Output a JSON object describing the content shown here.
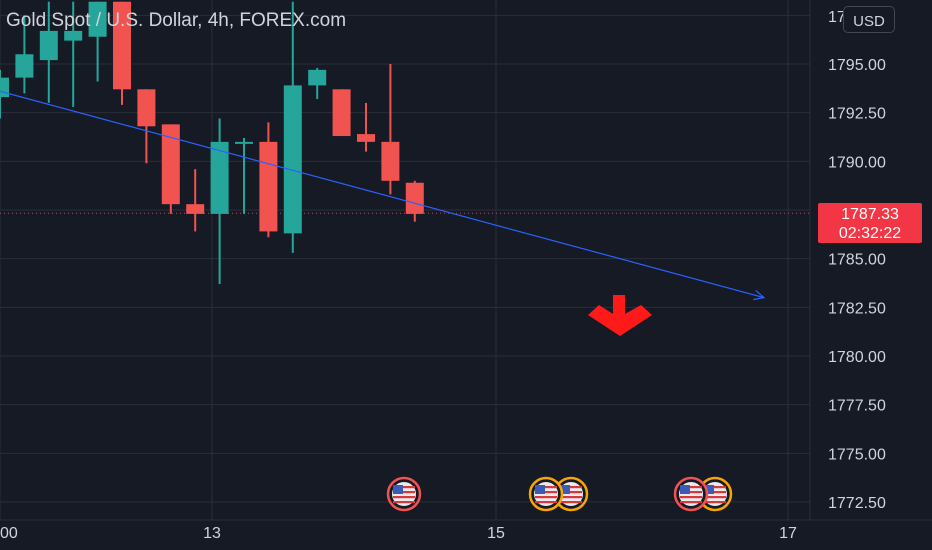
{
  "header": {
    "title": "Gold Spot / U.S. Dollar, 4h, FOREX.com"
  },
  "price_axis": {
    "currency_label": "USD",
    "top_partial_label": "1797.50",
    "ticks": [
      1795.0,
      1792.5,
      1790.0,
      1787.5,
      1785.0,
      1782.5,
      1780.0,
      1777.5,
      1775.0,
      1772.5
    ],
    "tick_labels": [
      "1795.00",
      "1792.50",
      "1790.00",
      "1787.50",
      "1785.00",
      "1782.50",
      "1780.00",
      "1777.50",
      "1775.00",
      "1772.50"
    ]
  },
  "last_price": {
    "price": "1787.33",
    "countdown": "02:32:22",
    "value": 1787.33
  },
  "time_axis": {
    "labels": [
      "00",
      "13",
      "15",
      "17"
    ]
  },
  "colors": {
    "up": "#26a69a",
    "down": "#f05350",
    "trend_line": "#2962ff",
    "arrow": "#ff1a1a",
    "background": "#161a25",
    "grid": "#2a2e39",
    "last_price_line": "#f23645"
  },
  "chart_data": {
    "type": "candlestick",
    "title": "Gold Spot / U.S. Dollar, 4h, FOREX.com",
    "ylabel": "",
    "xlabel": "",
    "ylim": [
      1771.8,
      1798.2
    ],
    "candles": [
      {
        "open": 1793.3,
        "high": 1794.7,
        "low": 1792.2,
        "close": 1794.3
      },
      {
        "open": 1794.3,
        "high": 1797.5,
        "low": 1793.5,
        "close": 1795.5
      },
      {
        "open": 1795.2,
        "high": 1798.2,
        "low": 1793.0,
        "close": 1796.7
      },
      {
        "open": 1796.2,
        "high": 1798.2,
        "low": 1792.8,
        "close": 1796.7
      },
      {
        "open": 1796.4,
        "high": 1798.2,
        "low": 1794.1,
        "close": 1798.2
      },
      {
        "open": 1798.2,
        "high": 1798.2,
        "low": 1792.9,
        "close": 1793.7
      },
      {
        "open": 1793.7,
        "high": 1793.7,
        "low": 1789.9,
        "close": 1791.8
      },
      {
        "open": 1791.9,
        "high": 1791.9,
        "low": 1787.3,
        "close": 1787.8
      },
      {
        "open": 1787.8,
        "high": 1789.6,
        "low": 1786.4,
        "close": 1787.3
      },
      {
        "open": 1787.3,
        "high": 1792.2,
        "low": 1783.7,
        "close": 1791.0
      },
      {
        "open": 1791.0,
        "high": 1791.2,
        "low": 1787.3,
        "close": 1791.0
      },
      {
        "open": 1791.0,
        "high": 1792.0,
        "low": 1786.1,
        "close": 1786.4
      },
      {
        "open": 1786.3,
        "high": 1798.2,
        "low": 1785.3,
        "close": 1793.9
      },
      {
        "open": 1793.9,
        "high": 1794.8,
        "low": 1793.2,
        "close": 1794.7
      },
      {
        "open": 1793.7,
        "high": 1793.7,
        "low": 1791.3,
        "close": 1791.3
      },
      {
        "open": 1791.4,
        "high": 1793.0,
        "low": 1790.5,
        "close": 1791.0
      },
      {
        "open": 1791.0,
        "high": 1795.0,
        "low": 1788.3,
        "close": 1789.0
      },
      {
        "open": 1788.9,
        "high": 1789.0,
        "low": 1786.9,
        "close": 1787.3
      }
    ],
    "trend_line": {
      "from": 1793.6,
      "to": 1783.0
    },
    "annotations": {
      "signal": "down-arrow",
      "event_markers": 5
    }
  }
}
